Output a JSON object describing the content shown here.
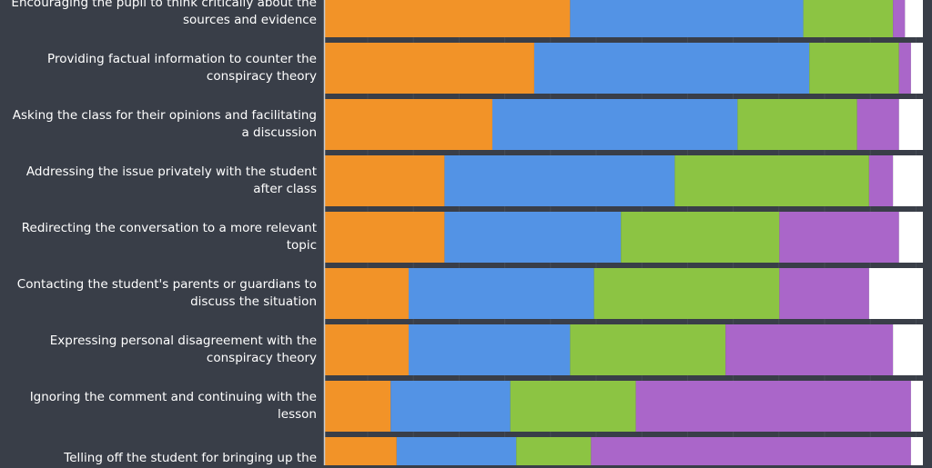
{
  "chart_data": {
    "type": "bar",
    "orientation": "horizontal",
    "stacked": true,
    "categories": [
      "Encouraging the pupil to think critically about the sources and evidence",
      "Providing factual information to counter the conspiracy theory",
      "Asking the class for their opinions and facilitating a discussion",
      "Addressing the issue privately with the student after class",
      "Redirecting the conversation to a more relevant topic",
      "Contacting the student's parents or guardians to discuss the situation",
      "Expressing personal disagreement with the conspiracy theory",
      "Ignoring the comment and continuing with the lesson",
      "Telling off the student for bringing up the"
    ],
    "series": [
      {
        "color": "#f29328",
        "values": [
          41,
          35,
          28,
          20,
          20,
          14,
          14,
          11,
          12
        ]
      },
      {
        "color": "#5393e5",
        "values": [
          39,
          46,
          41,
          38.5,
          29.5,
          31,
          27,
          20,
          20
        ]
      },
      {
        "color": "#8cc443",
        "values": [
          15,
          15,
          20,
          32.5,
          26.5,
          31,
          26,
          21,
          12.5
        ]
      },
      {
        "color": "#aa66c9",
        "values": [
          2,
          2,
          7,
          4,
          20,
          15,
          28,
          46,
          53.5
        ]
      },
      {
        "color": "#ffffff",
        "values": [
          3,
          2,
          4,
          5,
          4,
          9,
          5,
          2,
          2
        ]
      }
    ],
    "xlim": [
      0,
      100
    ],
    "grid": true,
    "legend": "none"
  }
}
